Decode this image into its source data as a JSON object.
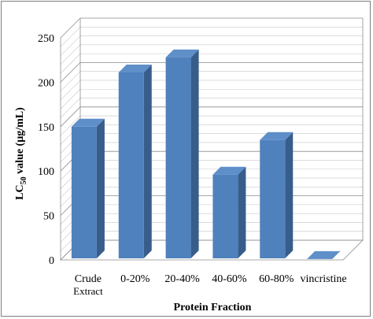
{
  "chart_data": {
    "type": "bar",
    "style": "3d-clustered-column",
    "categories": [
      "Crude Extract",
      "0-20%",
      "20-40%",
      "40-60%",
      "60-80%",
      "vincristine"
    ],
    "category_lines": [
      [
        "Crude",
        "Extract"
      ],
      [
        "0-20%"
      ],
      [
        "20-40%"
      ],
      [
        "40-60%"
      ],
      [
        "60-80%"
      ],
      [
        "vincristine"
      ]
    ],
    "values": [
      150,
      211,
      228,
      96,
      135,
      1
    ],
    "xlabel": "Protein Fraction",
    "ylabel_parts": {
      "pre": "LC",
      "sub": "50",
      "post": " value (µg/mL)"
    },
    "ylim": [
      0,
      250
    ],
    "yticks": [
      0,
      50,
      100,
      150,
      200,
      250
    ],
    "yticks_text": [
      "0",
      "50",
      "100",
      "150",
      "200",
      "250"
    ],
    "grid": true,
    "colors": {
      "bar_front": "#4f81bd",
      "bar_side": "#385d8a",
      "bar_top": "#5f8fc9",
      "grid": "#8c8c8c"
    }
  }
}
